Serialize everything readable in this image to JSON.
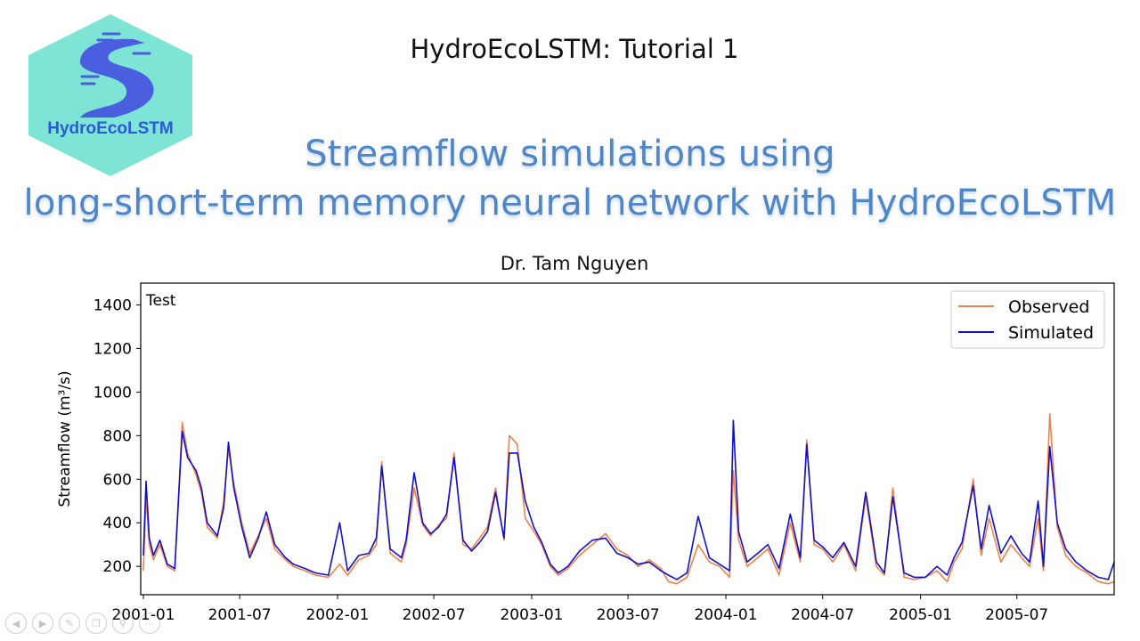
{
  "logo": {
    "text": "HydroEcoLSTM",
    "bg_color": "#7de4d6",
    "river_color": "#4a5ee0"
  },
  "slide": {
    "tutorial_title": "HydroEcoLSTM: Tutorial 1",
    "subtitle_line1": "Streamflow simulations using",
    "subtitle_line2": "long-short-term memory neural network with HydroEcoLSTM",
    "author": "Dr. Tam Nguyen"
  },
  "chart_data": {
    "type": "line",
    "panel_label": "Test",
    "ylabel": "Streamflow (m³/s)",
    "xlabel": "",
    "xlim": [
      "2000-12-27",
      "2005-12-31"
    ],
    "ylim": [
      70,
      1500
    ],
    "x_ticks": [
      "2001-01",
      "2001-07",
      "2002-01",
      "2002-07",
      "2003-01",
      "2003-07",
      "2004-01",
      "2004-07",
      "2005-01",
      "2005-07"
    ],
    "y_ticks": [
      200,
      400,
      600,
      800,
      1000,
      1200,
      1400
    ],
    "legend_position": "top-right",
    "grid": false,
    "series": [
      {
        "name": "Observed",
        "color": "#f0824a",
        "x": [
          "2001-01-01",
          "2001-01-06",
          "2001-01-12",
          "2001-01-20",
          "2001-02-01",
          "2001-02-15",
          "2001-03-01",
          "2001-03-15",
          "2001-03-25",
          "2001-04-10",
          "2001-04-20",
          "2001-05-01",
          "2001-05-20",
          "2001-06-01",
          "2001-06-10",
          "2001-06-20",
          "2001-07-05",
          "2001-07-20",
          "2001-08-05",
          "2001-08-20",
          "2001-09-05",
          "2001-09-25",
          "2001-10-10",
          "2001-11-01",
          "2001-11-20",
          "2001-12-15",
          "2002-01-05",
          "2002-01-20",
          "2002-02-10",
          "2002-03-01",
          "2002-03-15",
          "2002-03-25",
          "2002-04-10",
          "2002-05-01",
          "2002-05-10",
          "2002-05-25",
          "2002-06-10",
          "2002-06-25",
          "2002-07-10",
          "2002-07-25",
          "2002-08-08",
          "2002-08-25",
          "2002-09-10",
          "2002-09-25",
          "2002-10-10",
          "2002-10-25",
          "2002-11-10",
          "2002-11-20",
          "2002-12-05",
          "2002-12-20",
          "2003-01-05",
          "2003-01-20",
          "2003-02-05",
          "2003-02-20",
          "2003-03-10",
          "2003-04-01",
          "2003-04-25",
          "2003-05-20",
          "2003-06-10",
          "2003-07-01",
          "2003-07-20",
          "2003-08-10",
          "2003-09-01",
          "2003-09-15",
          "2003-10-01",
          "2003-10-20",
          "2003-11-10",
          "2003-12-01",
          "2003-12-20",
          "2004-01-08",
          "2004-01-15",
          "2004-01-25",
          "2004-02-10",
          "2004-03-01",
          "2004-03-20",
          "2004-04-10",
          "2004-05-01",
          "2004-05-20",
          "2004-06-01",
          "2004-06-15",
          "2004-07-01",
          "2004-07-20",
          "2004-08-10",
          "2004-09-01",
          "2004-09-20",
          "2004-10-10",
          "2004-10-25",
          "2004-11-10",
          "2004-12-01",
          "2004-12-20",
          "2005-01-10",
          "2005-02-01",
          "2005-02-20",
          "2005-03-05",
          "2005-03-20",
          "2005-04-10",
          "2005-04-25",
          "2005-05-10",
          "2005-06-01",
          "2005-06-20",
          "2005-07-10",
          "2005-07-25",
          "2005-08-10",
          "2005-08-20",
          "2005-09-01",
          "2005-09-15",
          "2005-10-01",
          "2005-10-20",
          "2005-11-10",
          "2005-12-01",
          "2005-12-20",
          "2005-12-31"
        ],
        "y": [
          180,
          520,
          300,
          230,
          300,
          200,
          180,
          860,
          720,
          620,
          540,
          380,
          330,
          500,
          740,
          580,
          400,
          260,
          340,
          420,
          280,
          230,
          200,
          180,
          160,
          150,
          210,
          160,
          230,
          250,
          300,
          680,
          260,
          220,
          300,
          560,
          390,
          340,
          390,
          420,
          720,
          300,
          280,
          330,
          380,
          560,
          320,
          800,
          760,
          420,
          360,
          300,
          200,
          160,
          190,
          250,
          300,
          350,
          280,
          250,
          200,
          230,
          190,
          130,
          120,
          150,
          300,
          220,
          200,
          150,
          640,
          320,
          200,
          240,
          280,
          160,
          400,
          220,
          780,
          300,
          280,
          220,
          300,
          180,
          520,
          200,
          160,
          560,
          150,
          140,
          150,
          180,
          130,
          220,
          280,
          600,
          250,
          420,
          220,
          300,
          240,
          200,
          420,
          180,
          900,
          380,
          250,
          200,
          170,
          130,
          120,
          130
        ]
      },
      {
        "name": "Simulated",
        "color": "#1010c8",
        "x": [
          "2001-01-01",
          "2001-01-06",
          "2001-01-12",
          "2001-01-20",
          "2001-02-01",
          "2001-02-15",
          "2001-03-01",
          "2001-03-15",
          "2001-03-25",
          "2001-04-10",
          "2001-04-20",
          "2001-05-01",
          "2001-05-20",
          "2001-06-01",
          "2001-06-10",
          "2001-06-20",
          "2001-07-05",
          "2001-07-20",
          "2001-08-05",
          "2001-08-20",
          "2001-09-05",
          "2001-09-25",
          "2001-10-10",
          "2001-11-01",
          "2001-11-20",
          "2001-12-15",
          "2002-01-05",
          "2002-01-20",
          "2002-02-10",
          "2002-03-01",
          "2002-03-15",
          "2002-03-25",
          "2002-04-10",
          "2002-05-01",
          "2002-05-10",
          "2002-05-25",
          "2002-06-10",
          "2002-06-25",
          "2002-07-10",
          "2002-07-25",
          "2002-08-08",
          "2002-08-25",
          "2002-09-10",
          "2002-09-25",
          "2002-10-10",
          "2002-10-25",
          "2002-11-10",
          "2002-11-20",
          "2002-12-05",
          "2002-12-20",
          "2003-01-05",
          "2003-01-20",
          "2003-02-05",
          "2003-02-20",
          "2003-03-10",
          "2003-04-01",
          "2003-04-25",
          "2003-05-20",
          "2003-06-10",
          "2003-07-01",
          "2003-07-20",
          "2003-08-10",
          "2003-09-01",
          "2003-09-15",
          "2003-10-01",
          "2003-10-20",
          "2003-11-10",
          "2003-12-01",
          "2003-12-20",
          "2004-01-08",
          "2004-01-15",
          "2004-01-25",
          "2004-02-10",
          "2004-03-01",
          "2004-03-20",
          "2004-04-10",
          "2004-05-01",
          "2004-05-20",
          "2004-06-01",
          "2004-06-15",
          "2004-07-01",
          "2004-07-20",
          "2004-08-10",
          "2004-09-01",
          "2004-09-20",
          "2004-10-10",
          "2004-10-25",
          "2004-11-10",
          "2004-12-01",
          "2004-12-20",
          "2005-01-10",
          "2005-02-01",
          "2005-02-20",
          "2005-03-05",
          "2005-03-20",
          "2005-04-10",
          "2005-04-25",
          "2005-05-10",
          "2005-06-01",
          "2005-06-20",
          "2005-07-10",
          "2005-07-25",
          "2005-08-10",
          "2005-08-20",
          "2005-09-01",
          "2005-09-15",
          "2005-10-01",
          "2005-10-20",
          "2005-11-10",
          "2005-12-01",
          "2005-12-20",
          "2005-12-31"
        ],
        "y": [
          250,
          590,
          330,
          250,
          320,
          210,
          190,
          820,
          700,
          640,
          560,
          400,
          340,
          470,
          770,
          560,
          380,
          240,
          330,
          450,
          300,
          240,
          210,
          190,
          170,
          160,
          400,
          180,
          250,
          260,
          330,
          660,
          280,
          240,
          320,
          630,
          400,
          350,
          380,
          440,
          700,
          320,
          270,
          310,
          360,
          540,
          330,
          720,
          720,
          500,
          380,
          310,
          210,
          170,
          200,
          270,
          320,
          330,
          260,
          240,
          210,
          220,
          180,
          160,
          140,
          170,
          430,
          240,
          210,
          180,
          870,
          360,
          220,
          260,
          300,
          190,
          440,
          240,
          760,
          320,
          290,
          240,
          310,
          200,
          540,
          220,
          170,
          520,
          170,
          150,
          150,
          200,
          160,
          240,
          310,
          570,
          280,
          480,
          260,
          340,
          260,
          220,
          500,
          200,
          750,
          400,
          280,
          220,
          180,
          150,
          140,
          220
        ]
      }
    ]
  },
  "nav": {
    "icons": [
      "prev-icon",
      "next-icon",
      "pen-icon",
      "copy-icon",
      "zoom-icon",
      "more-icon"
    ]
  }
}
